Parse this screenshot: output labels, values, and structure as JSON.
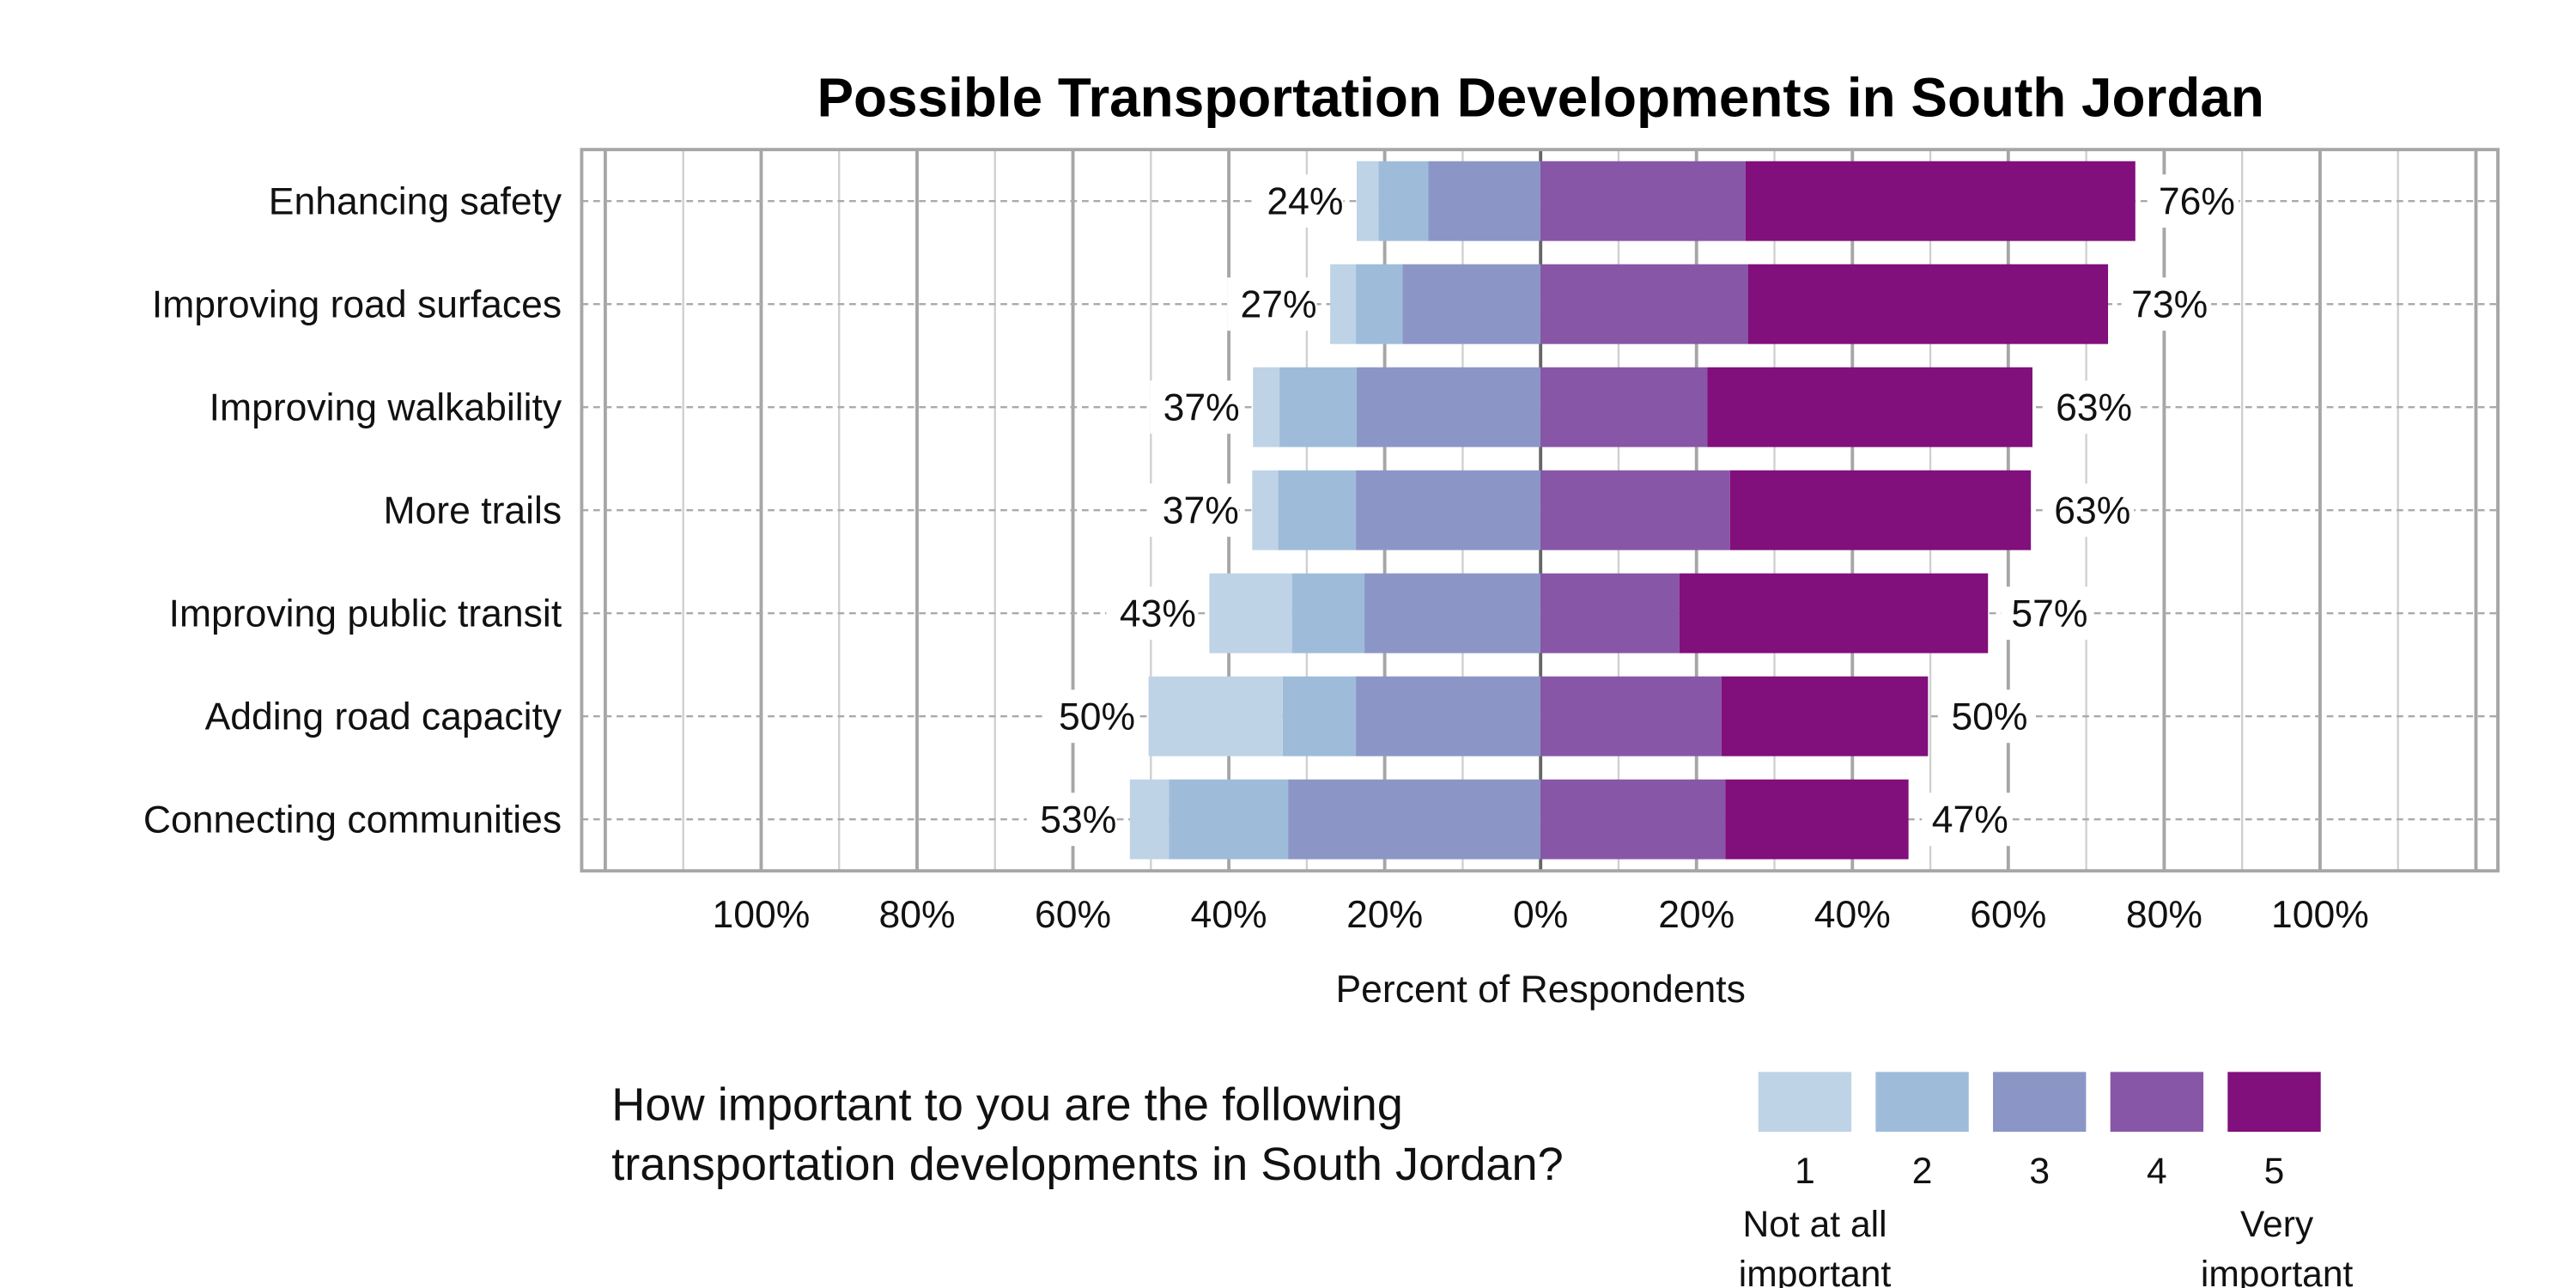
{
  "chart_data": {
    "type": "bar",
    "subtype": "diverging-stacked-horizontal",
    "title": "Possible Transportation Developments in South Jordan",
    "xlabel": "Percent of Respondents",
    "ylabel": "",
    "xlim": [
      -120,
      120
    ],
    "x_tick_labels": [
      "100%",
      "80%",
      "60%",
      "40%",
      "20%",
      "0%",
      "20%",
      "40%",
      "60%",
      "80%",
      "100%"
    ],
    "x_tick_values": [
      -100,
      -80,
      -60,
      -40,
      -20,
      0,
      20,
      40,
      60,
      80,
      100
    ],
    "grid": true,
    "legend_placement": "bottom-right",
    "legend_title": "How important to you are the following transportation developments in South Jordan?",
    "legend_title_lines": [
      "How important to you are the following",
      "transportation developments in South Jordan?"
    ],
    "legend_low_label": [
      "Not at all",
      "important"
    ],
    "legend_high_label": [
      "Very",
      "important"
    ],
    "categories": [
      "Enhancing safety",
      "Improving road surfaces",
      "Improving walkability",
      "More trails",
      "Improving public transit",
      "Adding road capacity",
      "Connecting communities"
    ],
    "series": [
      {
        "name": "1",
        "color": "#bfd3e6",
        "side": "negative",
        "values": [
          2.8,
          3.3,
          3.4,
          3.3,
          10.6,
          17.2,
          5.0
        ]
      },
      {
        "name": "2",
        "color": "#9ebcda",
        "side": "negative",
        "values": [
          6.4,
          6.0,
          9.9,
          10.0,
          9.3,
          9.4,
          15.3
        ]
      },
      {
        "name": "3",
        "color": "#8c96c6",
        "side": "negative",
        "values": [
          14.4,
          17.7,
          23.6,
          23.7,
          22.6,
          23.7,
          32.4
        ]
      },
      {
        "name": "4",
        "color": "#8856a7",
        "side": "positive",
        "values": [
          26.3,
          26.6,
          21.4,
          24.3,
          17.8,
          23.2,
          23.7
        ]
      },
      {
        "name": "5",
        "color": "#810f7c",
        "side": "positive",
        "values": [
          50.0,
          46.2,
          41.7,
          38.6,
          39.6,
          26.5,
          23.5
        ]
      }
    ],
    "left_totals": [
      "24%",
      "27%",
      "37%",
      "37%",
      "43%",
      "50%",
      "53%"
    ],
    "right_totals": [
      "76%",
      "73%",
      "63%",
      "63%",
      "57%",
      "50%",
      "47%"
    ]
  }
}
